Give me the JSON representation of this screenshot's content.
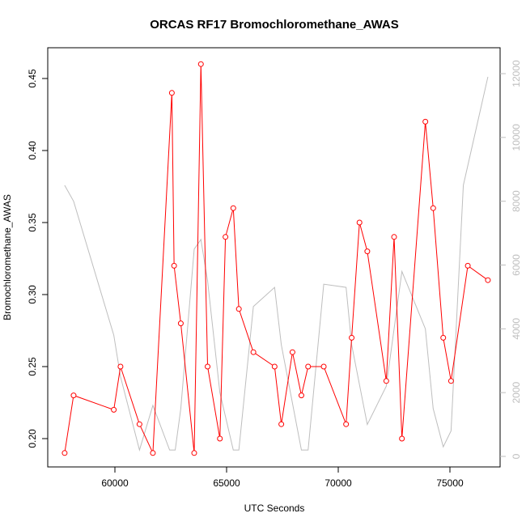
{
  "chart_data": {
    "type": "line",
    "title": "ORCAS RF17 Bromochloromethane_AWAS",
    "xlabel": "UTC Seconds",
    "ylabel": "Bromochloromethane_AWAS",
    "xlim": [
      57800,
      76700
    ],
    "ylim": [
      0.19,
      0.46
    ],
    "y2lim": [
      0,
      12000
    ],
    "x_ticks": [
      60000,
      65000,
      70000,
      75000
    ],
    "y_ticks": [
      0.2,
      0.25,
      0.3,
      0.35,
      0.4,
      0.45
    ],
    "y2_ticks": [
      0,
      2000,
      4000,
      6000,
      8000,
      10000,
      12000
    ],
    "x_tick_labels": [
      "60000",
      "65000",
      "70000",
      "75000"
    ],
    "y_tick_labels": [
      "0.20",
      "0.25",
      "0.30",
      "0.35",
      "0.40",
      "0.45"
    ],
    "y2_tick_labels": [
      "0",
      "2000",
      "4000",
      "6000",
      "8000",
      "10000",
      "12000"
    ],
    "grid": false,
    "colors": {
      "primary": "#ff0000",
      "secondary": "#bebebe",
      "axis": "#000000",
      "axis2": "#bebebe"
    },
    "series": [
      {
        "axis": "left",
        "style": "line-with-circles",
        "x": [
          57750,
          58150,
          59950,
          60250,
          61100,
          61700,
          62550,
          62650,
          62950,
          63550,
          63850,
          64150,
          64700,
          64950,
          65300,
          65550,
          66200,
          67150,
          67450,
          67950,
          68350,
          68650,
          69350,
          70350,
          70600,
          70950,
          71300,
          72150,
          72500,
          72850,
          73900,
          74250,
          74700,
          75050,
          75800,
          76700
        ],
        "y": [
          0.19,
          0.23,
          0.22,
          0.25,
          0.21,
          0.19,
          0.44,
          0.32,
          0.28,
          0.19,
          0.46,
          0.25,
          0.2,
          0.34,
          0.36,
          0.29,
          0.26,
          0.25,
          0.21,
          0.26,
          0.23,
          0.25,
          0.25,
          0.21,
          0.27,
          0.35,
          0.33,
          0.24,
          0.34,
          0.2,
          0.42,
          0.36,
          0.27,
          0.24,
          0.32,
          0.31
        ]
      },
      {
        "axis": "right",
        "style": "line",
        "x": [
          57750,
          58150,
          59950,
          60250,
          61100,
          61700,
          62450,
          62700,
          62950,
          63550,
          63850,
          64150,
          64700,
          65300,
          65550,
          66200,
          67150,
          67450,
          68350,
          68650,
          69350,
          70350,
          70600,
          71300,
          72150,
          72850,
          73900,
          74250,
          74700,
          75050,
          75600,
          76700
        ],
        "y": [
          8500,
          8000,
          3800,
          2500,
          200,
          1600,
          200,
          200,
          1500,
          6500,
          6800,
          5500,
          2000,
          200,
          200,
          4700,
          5300,
          3500,
          200,
          200,
          5400,
          5300,
          3500,
          1000,
          2200,
          5800,
          4000,
          1500,
          300,
          800,
          8500,
          11900
        ]
      }
    ]
  }
}
